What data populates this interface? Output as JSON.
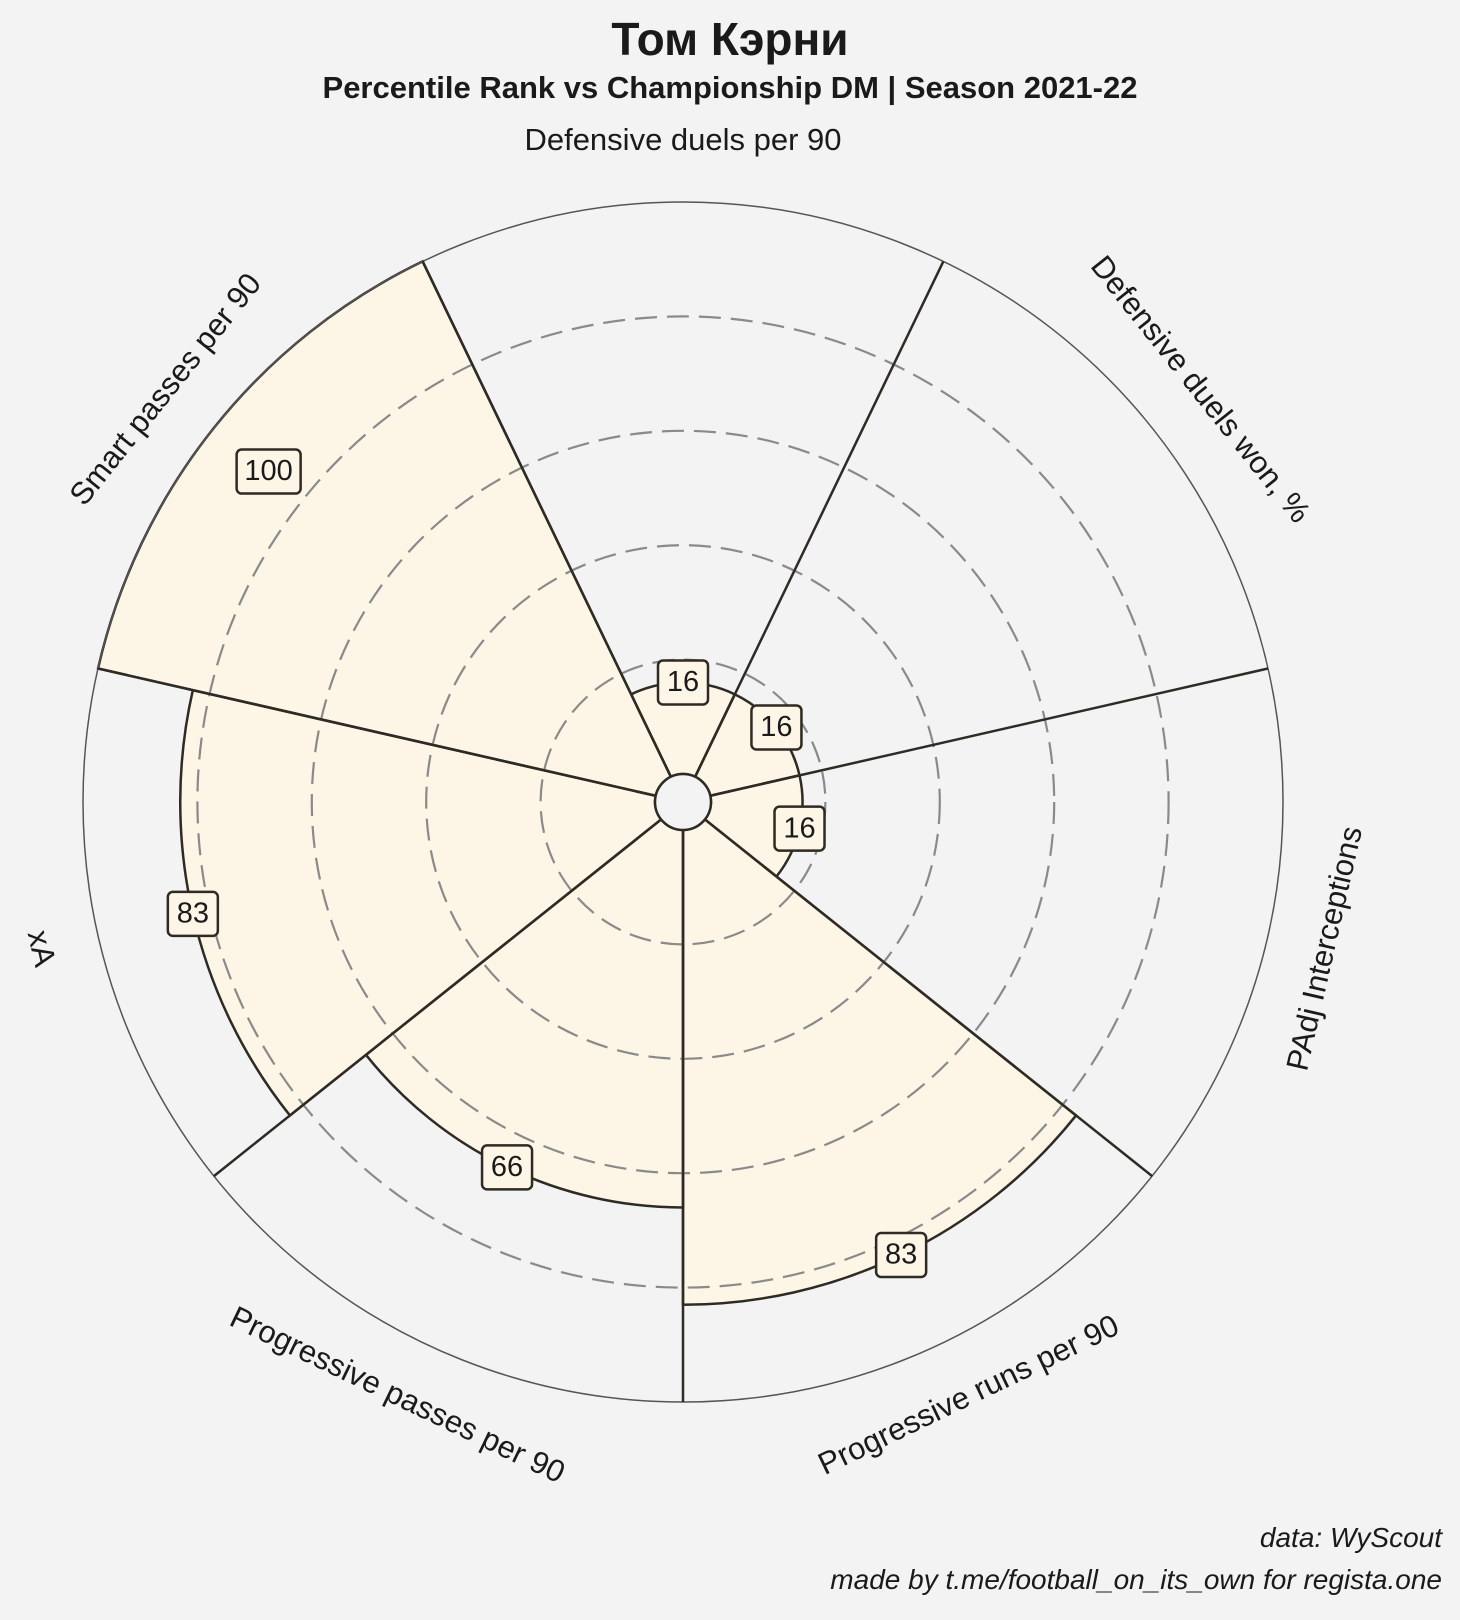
{
  "title": "Том Кэрни",
  "subtitle": "Percentile Rank vs Championship DM | Season 2021-22",
  "footer": {
    "data_source": "data: WyScout",
    "credit": "made by t.me/football_on_its_own for regista.one"
  },
  "colors": {
    "background": "#f3f3f3",
    "slice_fill": "#fdf5e6",
    "slice_stroke": "#2e2a24",
    "ring_dash": "#8a8a8a",
    "outer_ring": "#555555"
  },
  "chart_data": {
    "type": "radar-pizza",
    "scale": [
      0,
      100
    ],
    "ring_values": [
      20,
      40,
      60,
      80
    ],
    "metrics": [
      {
        "label": "Defensive duels per 90",
        "value": 16
      },
      {
        "label": "Defensive duels won, %",
        "value": 16
      },
      {
        "label": "PAdj Interceptions",
        "value": 16
      },
      {
        "label": "Progressive runs per 90",
        "value": 83
      },
      {
        "label": "Progressive passes per 90",
        "value": 66
      },
      {
        "label": "xA",
        "value": 83
      },
      {
        "label": "Smart passes per 90",
        "value": 100
      }
    ]
  }
}
